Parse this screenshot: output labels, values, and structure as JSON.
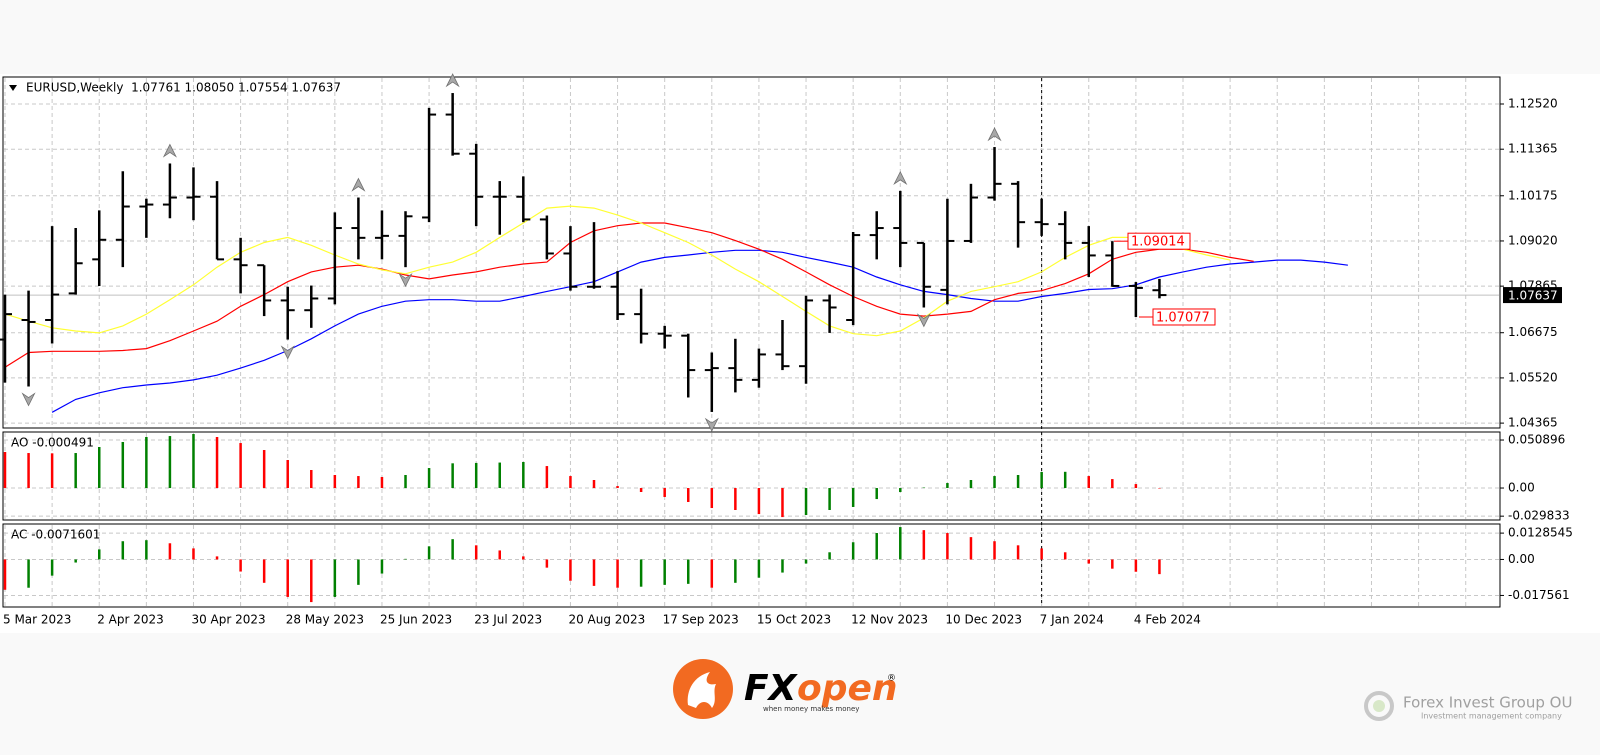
{
  "chart_data": {
    "type": "ohlc",
    "header": "EURUSD,Weekly  1.07761 1.08050 1.07554 1.07637",
    "categories": [
      "5 Mar 2023",
      null,
      null,
      null,
      "2 Apr 2023",
      null,
      null,
      null,
      "30 Apr 2023",
      null,
      null,
      null,
      "28 May 2023",
      null,
      null,
      null,
      "25 Jun 2023",
      null,
      null,
      null,
      "23 Jul 2023",
      null,
      null,
      null,
      "20 Aug 2023",
      null,
      null,
      null,
      "17 Sep 2023",
      null,
      null,
      null,
      "15 Oct 2023",
      null,
      null,
      null,
      "12 Nov 2023",
      null,
      null,
      null,
      "10 Dec 2023",
      null,
      null,
      null,
      "7 Jan 2024",
      null,
      null,
      null,
      "4 Feb 2024",
      null,
      null,
      null,
      null,
      null,
      null,
      null,
      null,
      null
    ],
    "ohlc": {
      "color": "#000000",
      "open": [
        1.065,
        1.07,
        1.07,
        1.0768,
        1.0855,
        1.0905,
        1.099,
        1.0995,
        1.1013,
        1.1015,
        1.0855,
        1.084,
        1.075,
        1.0725,
        1.0755,
        1.0935,
        1.091,
        1.0915,
        1.0962,
        1.1225,
        1.1125,
        1.1015,
        1.1015,
        1.0957,
        1.087,
        1.0785,
        1.0785,
        1.0715,
        1.0665,
        1.066,
        1.0572,
        1.0577,
        1.0547,
        1.0612,
        1.0582,
        1.075,
        1.07,
        1.0917,
        1.0935,
        1.0897,
        1.0777,
        1.0902,
        1.1013,
        1.1048,
        1.095,
        1.0945,
        1.0897,
        1.0865,
        1.0787,
        1.07761,
        null,
        null,
        null,
        null,
        null,
        null,
        null,
        null
      ],
      "high": [
        1.0765,
        1.0775,
        1.094,
        1.0935,
        1.098,
        1.108,
        1.101,
        1.11,
        1.109,
        1.1055,
        1.091,
        1.084,
        1.0785,
        1.0788,
        1.0975,
        1.1013,
        1.098,
        1.0978,
        1.1242,
        1.128,
        1.115,
        1.1055,
        1.1067,
        1.0967,
        1.094,
        1.095,
        1.0825,
        1.078,
        1.0685,
        1.0665,
        1.0617,
        1.0652,
        1.0627,
        1.07,
        1.0762,
        1.0765,
        1.0925,
        1.0978,
        1.103,
        1.0897,
        1.101,
        1.1048,
        1.1142,
        1.1055,
        1.101,
        1.0978,
        1.094,
        1.09014,
        1.0797,
        1.0805,
        null,
        null,
        null,
        null,
        null,
        null,
        null,
        null
      ],
      "low": [
        1.054,
        1.053,
        1.064,
        1.0765,
        1.0787,
        1.0835,
        1.091,
        1.096,
        1.0955,
        1.0855,
        1.0768,
        1.071,
        1.065,
        1.068,
        1.074,
        1.0855,
        1.0855,
        1.0835,
        1.095,
        1.112,
        1.094,
        1.0918,
        1.095,
        1.0855,
        1.0775,
        1.078,
        1.07,
        1.064,
        1.0627,
        1.0502,
        1.0465,
        1.0515,
        1.0527,
        1.0572,
        1.0537,
        1.0667,
        1.0687,
        1.0855,
        1.0835,
        1.0732,
        1.074,
        1.0897,
        1.1005,
        1.0885,
        1.0915,
        1.0855,
        1.081,
        1.0785,
        1.07077,
        1.07554,
        null,
        null,
        null,
        null,
        null,
        null,
        null,
        null
      ],
      "close": [
        1.0715,
        1.0695,
        1.0765,
        1.0845,
        1.0905,
        1.099,
        1.0995,
        1.1013,
        1.1015,
        1.0855,
        1.084,
        1.075,
        1.0725,
        1.0755,
        1.0935,
        1.091,
        1.0915,
        1.0965,
        1.1225,
        1.1125,
        1.1015,
        1.1015,
        1.0957,
        1.087,
        1.0785,
        1.0785,
        1.0715,
        1.0665,
        1.066,
        1.0572,
        1.0577,
        1.0547,
        1.0612,
        1.0582,
        1.075,
        1.0732,
        1.0917,
        1.0935,
        1.0897,
        1.0785,
        1.0902,
        1.1013,
        1.1048,
        1.095,
        1.0945,
        1.0897,
        1.0865,
        1.0787,
        1.0782,
        1.07637,
        null,
        null,
        null,
        null,
        null,
        null,
        null,
        null
      ]
    },
    "lines": [
      {
        "color": "#0000ff",
        "values": [
          null,
          null,
          1.0464,
          1.0497,
          1.0514,
          1.0527,
          1.0534,
          1.0539,
          1.0547,
          1.0559,
          1.0577,
          1.0597,
          1.0622,
          1.0652,
          1.0685,
          1.0715,
          1.0735,
          1.0748,
          1.0752,
          1.0752,
          1.0748,
          1.0748,
          1.076,
          1.0773,
          1.0785,
          1.0798,
          1.0823,
          1.0848,
          1.086,
          1.0866,
          1.0873,
          1.0878,
          1.0878,
          1.0873,
          1.086,
          1.0848,
          1.0835,
          1.081,
          1.079,
          1.0773,
          1.0765,
          1.0755,
          1.0748,
          1.0748,
          1.076,
          1.0768,
          1.0778,
          1.078,
          1.079,
          1.081,
          1.0823,
          1.0835,
          1.0843,
          1.0848,
          1.0853,
          1.0853,
          1.0848,
          1.084
        ]
      },
      {
        "color": "#ff0000",
        "values": [
          1.0579,
          1.0617,
          1.062,
          1.062,
          1.062,
          1.0622,
          1.0627,
          1.0647,
          1.0672,
          1.0697,
          1.0735,
          1.0765,
          1.0798,
          1.0823,
          1.0835,
          1.084,
          1.083,
          1.0815,
          1.0805,
          1.0815,
          1.0823,
          1.0835,
          1.0843,
          1.0848,
          1.0898,
          1.0928,
          1.0941,
          1.0948,
          1.0948,
          1.0936,
          1.0923,
          1.0903,
          1.0881,
          1.0855,
          1.0823,
          1.079,
          1.076,
          1.0735,
          1.0715,
          1.071,
          1.0715,
          1.0722,
          1.0752,
          1.0768,
          1.0775,
          1.0793,
          1.0818,
          1.0855,
          1.0873,
          1.0881,
          1.0881,
          1.0873,
          1.086,
          1.085,
          null,
          null,
          null,
          null
        ]
      },
      {
        "color": "#ffff33",
        "values": [
          1.0715,
          1.0697,
          1.068,
          1.0672,
          1.0667,
          1.0685,
          1.0715,
          1.0752,
          1.079,
          1.0835,
          1.0873,
          1.0898,
          1.0911,
          1.0891,
          1.0866,
          1.0843,
          1.0828,
          1.0818,
          1.0835,
          1.0848,
          1.0873,
          1.0911,
          1.0948,
          1.0986,
          1.0991,
          1.0986,
          1.0968,
          1.0948,
          1.0923,
          1.0898,
          1.0866,
          1.083,
          1.0798,
          1.076,
          1.0722,
          1.0685,
          1.0665,
          1.066,
          1.0672,
          1.0705,
          1.0748,
          1.0773,
          1.0785,
          1.0798,
          1.0823,
          1.086,
          1.0891,
          1.0911,
          1.0911,
          1.0898,
          1.0881,
          1.0866,
          1.0853,
          null,
          null,
          null,
          null,
          null
        ]
      }
    ],
    "fractals_up": [
      null,
      null,
      null,
      null,
      null,
      null,
      null,
      1.11,
      null,
      null,
      null,
      null,
      null,
      null,
      null,
      1.1013,
      null,
      null,
      null,
      1.128,
      null,
      null,
      null,
      null,
      null,
      null,
      null,
      null,
      null,
      null,
      null,
      null,
      null,
      null,
      null,
      null,
      null,
      null,
      1.103,
      null,
      null,
      null,
      1.1142,
      null,
      null,
      null,
      null,
      null,
      null,
      null,
      null,
      null,
      null,
      null,
      null,
      null,
      null,
      null
    ],
    "fractals_down": [
      null,
      1.053,
      null,
      null,
      null,
      null,
      null,
      null,
      null,
      null,
      null,
      null,
      1.065,
      null,
      null,
      null,
      null,
      1.0835,
      null,
      null,
      null,
      null,
      null,
      null,
      null,
      null,
      null,
      null,
      null,
      null,
      1.0465,
      null,
      null,
      null,
      null,
      null,
      null,
      null,
      null,
      1.0732,
      null,
      null,
      null,
      null,
      null,
      null,
      null,
      null,
      null,
      null,
      null,
      null,
      null,
      null,
      null,
      null,
      null,
      null
    ],
    "fractal_color": "#a8a8a8",
    "ylim": [
      1.0424,
      1.1321
    ],
    "yticks": [
      {
        "value": 1.1252,
        "label": "1.12520"
      },
      {
        "value": 1.11365,
        "label": "1.11365"
      },
      {
        "value": 1.10175,
        "label": "1.10175"
      },
      {
        "value": 1.0902,
        "label": "1.09020"
      },
      {
        "value": 1.07865,
        "label": "1.07865"
      },
      {
        "value": 1.06675,
        "label": "1.06675"
      },
      {
        "value": 1.0552,
        "label": "1.05520"
      },
      {
        "value": 1.04365,
        "label": "1.04365"
      }
    ],
    "grid": true,
    "last_price": 1.07637,
    "price_labels": [
      1.09014,
      1.07077
    ],
    "price_label_color": "#ff0000",
    "indicators": [
      {
        "type": "bar",
        "title": "AO -0.000491",
        "up_color": "#008000",
        "down_color": "#ff0000",
        "values": [
          0.0382,
          0.0371,
          0.0368,
          0.0371,
          0.0435,
          0.0488,
          0.0541,
          0.0551,
          0.0573,
          0.0541,
          0.0477,
          0.0403,
          0.0297,
          0.0191,
          0.0138,
          0.0127,
          0.0117,
          0.0138,
          0.0212,
          0.0262,
          0.0266,
          0.027,
          0.0276,
          0.0233,
          0.0127,
          0.0085,
          0.0021,
          -0.0042,
          -0.0095,
          -0.0148,
          -0.0212,
          -0.0233,
          -0.0276,
          -0.0308,
          -0.0286,
          -0.0233,
          -0.0201,
          -0.0117,
          -0.0042,
          0.0005,
          0.0053,
          0.0085,
          0.0127,
          0.0138,
          0.017,
          0.0172,
          0.0127,
          0.0095,
          0.0042,
          -0.000491,
          null,
          null,
          null,
          null,
          null,
          null,
          null,
          null
        ],
        "ylim": [
          -0.0339,
          0.0594
        ],
        "yticks": [
          0.050896,
          {
            "value": 0,
            "label": "0.00"
          },
          -0.029833
        ]
      },
      {
        "type": "bar",
        "title": "AC -0.0071601",
        "up_color": "#008000",
        "down_color": "#ff0000",
        "values": [
          -0.0148,
          -0.0138,
          -0.0079,
          -0.0015,
          0.0049,
          0.0089,
          0.0094,
          0.0079,
          0.0054,
          0.0015,
          -0.0059,
          -0.0114,
          -0.0183,
          -0.0208,
          -0.0183,
          -0.0124,
          -0.0069,
          0.0003,
          0.0064,
          0.0099,
          0.0069,
          0.0044,
          0.0015,
          -0.004,
          -0.0104,
          -0.0129,
          -0.0138,
          -0.0133,
          -0.0124,
          -0.0119,
          -0.0138,
          -0.0114,
          -0.0089,
          -0.0064,
          -0.002,
          0.0035,
          0.0084,
          0.0129,
          0.0158,
          0.0143,
          0.0129,
          0.0109,
          0.0089,
          0.0069,
          0.0054,
          0.0035,
          -0.002,
          -0.0045,
          -0.006,
          -0.0071601,
          null,
          null,
          null,
          null,
          null,
          null,
          null,
          null
        ],
        "ylim": [
          -0.0232,
          0.0173
        ],
        "yticks": [
          0.0128545,
          {
            "value": 0,
            "label": "0.00"
          },
          -0.017561
        ]
      }
    ]
  },
  "footer": {
    "brand": [
      "FX",
      "open"
    ],
    "registered": "®",
    "tagline": "when money makes money",
    "company": "Forex Invest Group OU",
    "company_tagline": "Investment management company"
  }
}
